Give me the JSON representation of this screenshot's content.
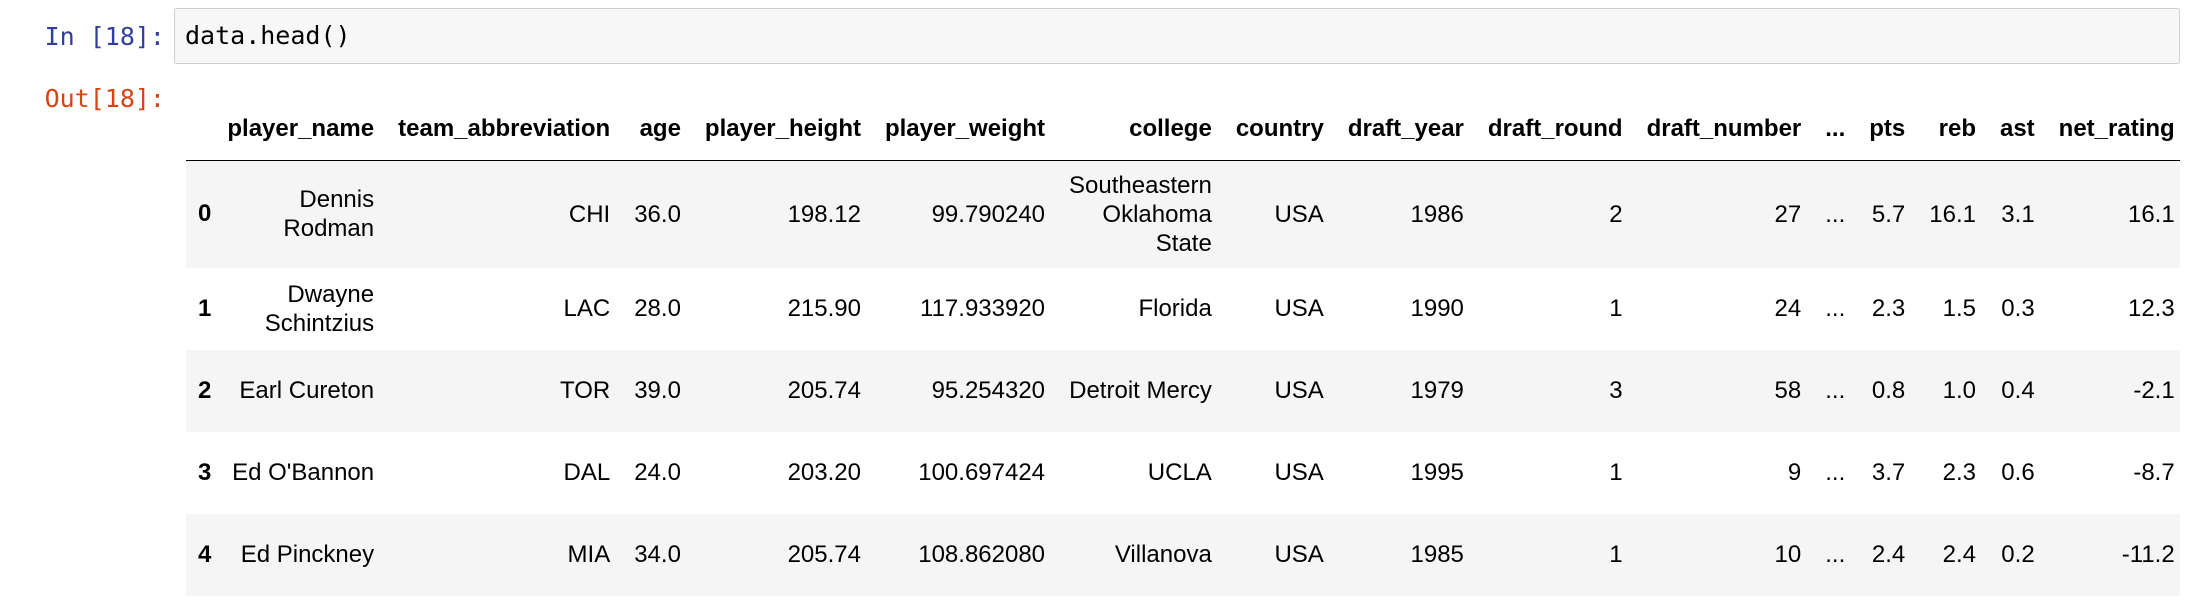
{
  "notebook": {
    "in_prompt": "In [18]:",
    "out_prompt": "Out[18]:",
    "code": "data.head()"
  },
  "table": {
    "columns": [
      "",
      "player_name",
      "team_abbreviation",
      "age",
      "player_height",
      "player_weight",
      "college",
      "country",
      "draft_year",
      "draft_round",
      "draft_number",
      "...",
      "pts",
      "reb",
      "ast",
      "net_rating"
    ],
    "rows": [
      {
        "index": "0",
        "player_name": "Dennis Rodman",
        "team_abbreviation": "CHI",
        "age": "36.0",
        "player_height": "198.12",
        "player_weight": "99.790240",
        "college": "Southeastern Oklahoma State",
        "country": "USA",
        "draft_year": "1986",
        "draft_round": "2",
        "draft_number": "27",
        "ellipsis": "...",
        "pts": "5.7",
        "reb": "16.1",
        "ast": "3.1",
        "net_rating": "16.1"
      },
      {
        "index": "1",
        "player_name": "Dwayne Schintzius",
        "team_abbreviation": "LAC",
        "age": "28.0",
        "player_height": "215.90",
        "player_weight": "117.933920",
        "college": "Florida",
        "country": "USA",
        "draft_year": "1990",
        "draft_round": "1",
        "draft_number": "24",
        "ellipsis": "...",
        "pts": "2.3",
        "reb": "1.5",
        "ast": "0.3",
        "net_rating": "12.3"
      },
      {
        "index": "2",
        "player_name": "Earl Cureton",
        "team_abbreviation": "TOR",
        "age": "39.0",
        "player_height": "205.74",
        "player_weight": "95.254320",
        "college": "Detroit Mercy",
        "country": "USA",
        "draft_year": "1979",
        "draft_round": "3",
        "draft_number": "58",
        "ellipsis": "...",
        "pts": "0.8",
        "reb": "1.0",
        "ast": "0.4",
        "net_rating": "-2.1"
      },
      {
        "index": "3",
        "player_name": "Ed O'Bannon",
        "team_abbreviation": "DAL",
        "age": "24.0",
        "player_height": "203.20",
        "player_weight": "100.697424",
        "college": "UCLA",
        "country": "USA",
        "draft_year": "1995",
        "draft_round": "1",
        "draft_number": "9",
        "ellipsis": "...",
        "pts": "3.7",
        "reb": "2.3",
        "ast": "0.6",
        "net_rating": "-8.7"
      },
      {
        "index": "4",
        "player_name": "Ed Pinckney",
        "team_abbreviation": "MIA",
        "age": "34.0",
        "player_height": "205.74",
        "player_weight": "108.862080",
        "college": "Villanova",
        "country": "USA",
        "draft_year": "1985",
        "draft_round": "1",
        "draft_number": "10",
        "ellipsis": "...",
        "pts": "2.4",
        "reb": "2.4",
        "ast": "0.2",
        "net_rating": "-11.2"
      }
    ]
  }
}
